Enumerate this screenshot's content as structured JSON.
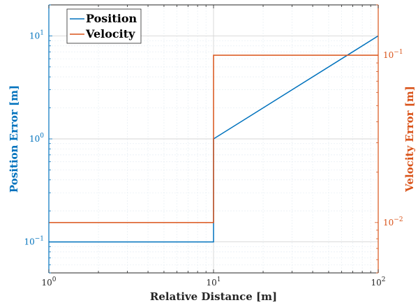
{
  "chart_data": {
    "type": "line",
    "x_scale": "log",
    "y_scale": "log",
    "grid": true,
    "legend_position": "top-left",
    "xlabel": "Relative Distance [m]",
    "ylabel_left": "Position Error [m]",
    "ylabel_right": "Velocity Error [m]",
    "xlim": [
      1,
      100
    ],
    "ylim_left": [
      0.05,
      20
    ],
    "ylim_right": [
      0.005,
      0.2
    ],
    "x_ticks": [
      {
        "value": 1,
        "base": "10",
        "exp": "0"
      },
      {
        "value": 10,
        "base": "10",
        "exp": "1"
      },
      {
        "value": 100,
        "base": "10",
        "exp": "2"
      }
    ],
    "y_left_ticks": [
      {
        "value": 0.1,
        "base": "10",
        "exp": "−1"
      },
      {
        "value": 1,
        "base": "10",
        "exp": "0"
      },
      {
        "value": 10,
        "base": "10",
        "exp": "1"
      }
    ],
    "y_right_ticks": [
      {
        "value": 0.01,
        "base": "10",
        "exp": "−2"
      },
      {
        "value": 0.1,
        "base": "10",
        "exp": "−1"
      }
    ],
    "series": [
      {
        "name": "Position",
        "axis": "left",
        "color": "#0072BD",
        "points": [
          [
            1,
            0.1
          ],
          [
            10,
            0.1
          ],
          [
            10,
            1
          ],
          [
            100,
            10
          ]
        ]
      },
      {
        "name": "Velocity",
        "axis": "right",
        "color": "#D95319",
        "points": [
          [
            1,
            0.01
          ],
          [
            10,
            0.01
          ],
          [
            10,
            0.1
          ],
          [
            100,
            0.1
          ]
        ]
      }
    ]
  }
}
